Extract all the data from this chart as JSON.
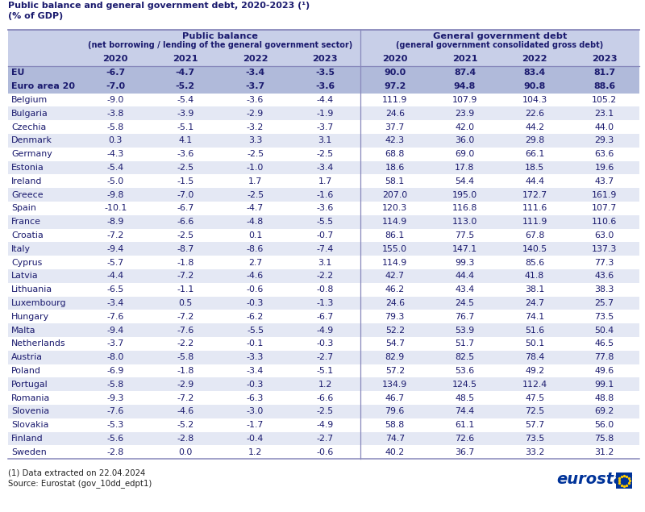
{
  "title": "Public balance and general government debt, 2020-2023 (¹)",
  "subtitle": "(% of GDP)",
  "footnote": "(1) Data extracted on 22.04.2024",
  "source": "Source: Eurostat (gov_10dd_edpt1)",
  "years": [
    "2020",
    "2021",
    "2022",
    "2023"
  ],
  "rows": [
    [
      "EU",
      -6.7,
      -4.7,
      -3.4,
      -3.5,
      90.0,
      87.4,
      83.4,
      81.7
    ],
    [
      "Euro area 20",
      -7.0,
      -5.2,
      -3.7,
      -3.6,
      97.2,
      94.8,
      90.8,
      88.6
    ],
    [
      "Belgium",
      -9.0,
      -5.4,
      -3.6,
      -4.4,
      111.9,
      107.9,
      104.3,
      105.2
    ],
    [
      "Bulgaria",
      -3.8,
      -3.9,
      -2.9,
      -1.9,
      24.6,
      23.9,
      22.6,
      23.1
    ],
    [
      "Czechia",
      -5.8,
      -5.1,
      -3.2,
      -3.7,
      37.7,
      42.0,
      44.2,
      44.0
    ],
    [
      "Denmark",
      0.3,
      4.1,
      3.3,
      3.1,
      42.3,
      36.0,
      29.8,
      29.3
    ],
    [
      "Germany",
      -4.3,
      -3.6,
      -2.5,
      -2.5,
      68.8,
      69.0,
      66.1,
      63.6
    ],
    [
      "Estonia",
      -5.4,
      -2.5,
      -1.0,
      -3.4,
      18.6,
      17.8,
      18.5,
      19.6
    ],
    [
      "Ireland",
      -5.0,
      -1.5,
      1.7,
      1.7,
      58.1,
      54.4,
      44.4,
      43.7
    ],
    [
      "Greece",
      -9.8,
      -7.0,
      -2.5,
      -1.6,
      207.0,
      195.0,
      172.7,
      161.9
    ],
    [
      "Spain",
      -10.1,
      -6.7,
      -4.7,
      -3.6,
      120.3,
      116.8,
      111.6,
      107.7
    ],
    [
      "France",
      -8.9,
      -6.6,
      -4.8,
      -5.5,
      114.9,
      113.0,
      111.9,
      110.6
    ],
    [
      "Croatia",
      -7.2,
      -2.5,
      0.1,
      -0.7,
      86.1,
      77.5,
      67.8,
      63.0
    ],
    [
      "Italy",
      -9.4,
      -8.7,
      -8.6,
      -7.4,
      155.0,
      147.1,
      140.5,
      137.3
    ],
    [
      "Cyprus",
      -5.7,
      -1.8,
      2.7,
      3.1,
      114.9,
      99.3,
      85.6,
      77.3
    ],
    [
      "Latvia",
      -4.4,
      -7.2,
      -4.6,
      -2.2,
      42.7,
      44.4,
      41.8,
      43.6
    ],
    [
      "Lithuania",
      -6.5,
      -1.1,
      -0.6,
      -0.8,
      46.2,
      43.4,
      38.1,
      38.3
    ],
    [
      "Luxembourg",
      -3.4,
      0.5,
      -0.3,
      -1.3,
      24.6,
      24.5,
      24.7,
      25.7
    ],
    [
      "Hungary",
      -7.6,
      -7.2,
      -6.2,
      -6.7,
      79.3,
      76.7,
      74.1,
      73.5
    ],
    [
      "Malta",
      -9.4,
      -7.6,
      -5.5,
      -4.9,
      52.2,
      53.9,
      51.6,
      50.4
    ],
    [
      "Netherlands",
      -3.7,
      -2.2,
      -0.1,
      -0.3,
      54.7,
      51.7,
      50.1,
      46.5
    ],
    [
      "Austria",
      -8.0,
      -5.8,
      -3.3,
      -2.7,
      82.9,
      82.5,
      78.4,
      77.8
    ],
    [
      "Poland",
      -6.9,
      -1.8,
      -3.4,
      -5.1,
      57.2,
      53.6,
      49.2,
      49.6
    ],
    [
      "Portugal",
      -5.8,
      -2.9,
      -0.3,
      1.2,
      134.9,
      124.5,
      112.4,
      99.1
    ],
    [
      "Romania",
      -9.3,
      -7.2,
      -6.3,
      -6.6,
      46.7,
      48.5,
      47.5,
      48.8
    ],
    [
      "Slovenia",
      -7.6,
      -4.6,
      -3.0,
      -2.5,
      79.6,
      74.4,
      72.5,
      69.2
    ],
    [
      "Slovakia",
      -5.3,
      -5.2,
      -1.7,
      -4.9,
      58.8,
      61.1,
      57.7,
      56.0
    ],
    [
      "Finland",
      -5.6,
      -2.8,
      -0.4,
      -2.7,
      74.7,
      72.6,
      73.5,
      75.8
    ],
    [
      "Sweden",
      -2.8,
      0.0,
      1.2,
      -0.6,
      40.2,
      36.7,
      33.2,
      31.2
    ]
  ],
  "header_bg": "#c8cfe8",
  "eu_row_bg": "#b0bada",
  "odd_row_bg": "#ffffff",
  "even_row_bg": "#e4e8f4",
  "title_color": "#1a1a6e",
  "text_color": "#1a1a6e",
  "line_color": "#8888bb",
  "bg_color": "#ffffff",
  "eurostat_blue": "#003399",
  "eurostat_box": "#003399"
}
